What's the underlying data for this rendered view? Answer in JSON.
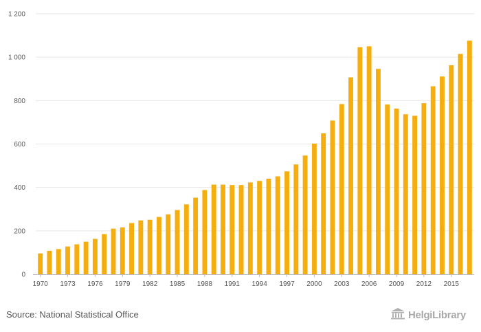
{
  "colors": {
    "bar": "#F5AE0F",
    "grid": "#e6e6e6",
    "axis": "#bbbbbb",
    "text": "#555555"
  },
  "chart_data": {
    "type": "bar",
    "categories": [
      "1970",
      "1971",
      "1972",
      "1973",
      "1974",
      "1975",
      "1976",
      "1977",
      "1978",
      "1979",
      "1980",
      "1981",
      "1982",
      "1983",
      "1984",
      "1985",
      "1986",
      "1987",
      "1988",
      "1989",
      "1990",
      "1991",
      "1992",
      "1993",
      "1994",
      "1995",
      "1996",
      "1997",
      "1998",
      "1999",
      "2000",
      "2001",
      "2002",
      "2003",
      "2004",
      "2005",
      "2006",
      "2007",
      "2008",
      "2009",
      "2010",
      "2011",
      "2012",
      "2013",
      "2014",
      "2015",
      "2016",
      "2017"
    ],
    "values": [
      96,
      108,
      116,
      128,
      138,
      150,
      163,
      185,
      210,
      216,
      236,
      248,
      251,
      264,
      276,
      296,
      322,
      353,
      388,
      413,
      413,
      411,
      411,
      423,
      430,
      440,
      451,
      474,
      506,
      547,
      602,
      649,
      708,
      784,
      907,
      1046,
      1050,
      946,
      782,
      763,
      737,
      730,
      788,
      866,
      911,
      963,
      1015,
      1076
    ],
    "xtick_labels": [
      "1970",
      "1973",
      "1976",
      "1979",
      "1982",
      "1985",
      "1988",
      "1991",
      "1994",
      "1997",
      "2000",
      "2003",
      "2006",
      "2009",
      "2012",
      "2015"
    ],
    "ytick_values": [
      0,
      200,
      400,
      600,
      800,
      1000,
      1200
    ],
    "ytick_labels": [
      "0",
      "200",
      "400",
      "600",
      "800",
      "1 000",
      "1 200"
    ],
    "ylim": [
      0,
      1200
    ],
    "grid": true,
    "legend": "none"
  },
  "footer": {
    "source": "Source: National Statistical Office",
    "logo_text": "HelgiLibrary",
    "logo_icon": "library-building-icon"
  }
}
